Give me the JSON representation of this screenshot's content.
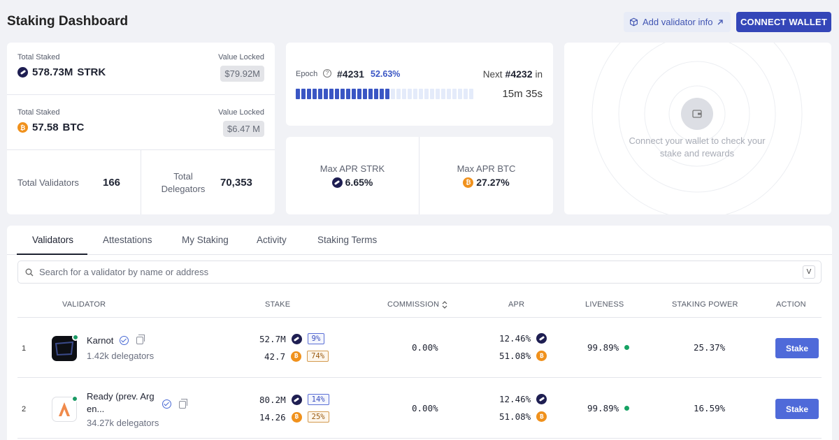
{
  "header": {
    "title": "Staking Dashboard",
    "add_validator_label": "Add validator info",
    "connect_label": "CONNECT WALLET"
  },
  "summary": {
    "strk": {
      "label": "Total Staked",
      "amount": "578.73M",
      "unit": "STRK",
      "value_label": "Value Locked",
      "value": "$79.92M"
    },
    "btc": {
      "label": "Total Staked",
      "amount": "57.58",
      "unit": "BTC",
      "value_label": "Value Locked",
      "value": "$6.47 M"
    },
    "validators_label": "Total Validators",
    "validators_value": "166",
    "delegators_label": "Total Delegators",
    "delegators_value": "70,353"
  },
  "epoch": {
    "label": "Epoch",
    "current": "#4231",
    "percent": "52.63%",
    "progress": 0.5263,
    "next_label": "Next",
    "next": "#4232",
    "in_label": "in",
    "remaining": "15m 35s"
  },
  "apr": {
    "strk_label": "Max APR STRK",
    "strk_value": "6.65%",
    "btc_label": "Max APR BTC",
    "btc_value": "27.27%"
  },
  "wallet": {
    "message": "Connect your wallet to check your stake and rewards"
  },
  "tabs": [
    "Validators",
    "Attestations",
    "My Staking",
    "Activity",
    "Staking Terms"
  ],
  "search": {
    "placeholder": "Search for a validator by name or address",
    "shortcut": "V"
  },
  "columns": [
    "VALIDATOR",
    "STAKE",
    "COMMISSION",
    "APR",
    "LIVENESS",
    "STAKING POWER",
    "ACTION"
  ],
  "validators": [
    {
      "index": "1",
      "name": "Karnot",
      "delegators": "1.42k delegators",
      "stake_strk": "52.7M",
      "stake_strk_pct": "9%",
      "stake_btc": "42.7",
      "stake_btc_pct": "74%",
      "commission": "0.00%",
      "apr_strk": "12.46%",
      "apr_btc": "51.08%",
      "liveness": "99.89%",
      "staking_power": "25.37%",
      "action": "Stake"
    },
    {
      "index": "2",
      "name_line1": "Ready (prev. Arg",
      "name_line2": "en...",
      "delegators": "34.27k delegators",
      "stake_strk": "80.2M",
      "stake_strk_pct": "14%",
      "stake_btc": "14.26",
      "stake_btc_pct": "25%",
      "commission": "0.00%",
      "apr_strk": "12.46%",
      "apr_btc": "51.08%",
      "liveness": "99.89%",
      "staking_power": "16.59%",
      "action": "Stake"
    }
  ],
  "colors": {
    "accent": "#3446b8",
    "strk": "#1e1e52",
    "btc": "#f0911c",
    "live": "#16a263"
  }
}
